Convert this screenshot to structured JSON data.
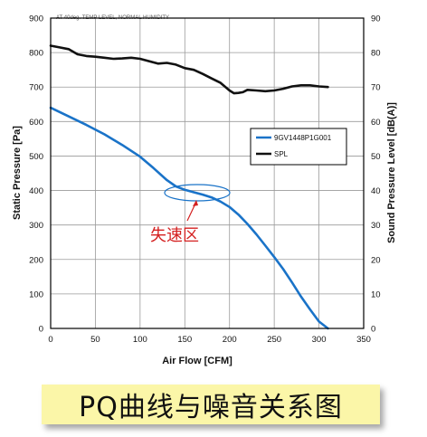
{
  "chart_data": {
    "type": "line",
    "header_note": "AT 40deg. TEMP LEVEL, NORMAL HUMIDITY",
    "xlabel": "Air Flow [CFM]",
    "ylabel": "Static Pressure [Pa]",
    "y2label": "Sound Pressure Level [dB(A)]",
    "xlim": [
      0,
      350
    ],
    "ylim": [
      0,
      900
    ],
    "y2lim": [
      0,
      90
    ],
    "xticks": [
      0,
      50,
      100,
      150,
      200,
      250,
      300,
      350
    ],
    "yticks": [
      0,
      100,
      200,
      300,
      400,
      500,
      600,
      700,
      800,
      900
    ],
    "y2ticks": [
      0,
      10,
      20,
      30,
      40,
      50,
      60,
      70,
      80,
      90
    ],
    "grid": true,
    "legend_position": "right",
    "series": [
      {
        "name": "9GV1448P1G001",
        "axis": "left",
        "color": "#1a73c8",
        "x": [
          0,
          20,
          40,
          60,
          80,
          100,
          115,
          130,
          140,
          150,
          160,
          170,
          180,
          190,
          200,
          210,
          220,
          230,
          240,
          250,
          260,
          270,
          280,
          290,
          300,
          310
        ],
        "y": [
          640,
          615,
          590,
          563,
          532,
          498,
          465,
          430,
          412,
          402,
          395,
          388,
          380,
          368,
          352,
          330,
          303,
          273,
          240,
          207,
          172,
          133,
          92,
          55,
          20,
          0
        ]
      },
      {
        "name": "SPL",
        "axis": "right",
        "color": "#111111",
        "x": [
          0,
          10,
          20,
          30,
          40,
          50,
          60,
          70,
          80,
          90,
          100,
          110,
          120,
          130,
          140,
          150,
          160,
          170,
          180,
          190,
          200,
          205,
          210,
          215,
          220,
          230,
          240,
          250,
          260,
          270,
          280,
          290,
          300,
          310
        ],
        "y": [
          82,
          81.5,
          81,
          79.5,
          79,
          78.8,
          78.5,
          78.2,
          78.3,
          78.5,
          78.2,
          77.5,
          76.8,
          77,
          76.5,
          75.5,
          75,
          73.8,
          72.5,
          71.2,
          69,
          68.2,
          68.3,
          68.5,
          69.2,
          69,
          68.8,
          69,
          69.5,
          70.2,
          70.5,
          70.5,
          70.2,
          70
        ]
      }
    ],
    "annotation": {
      "label": "失速区",
      "label_color": "#d42020",
      "ellipse_color": "#1a73c8"
    }
  },
  "caption": "PQ曲线与噪音关系图"
}
